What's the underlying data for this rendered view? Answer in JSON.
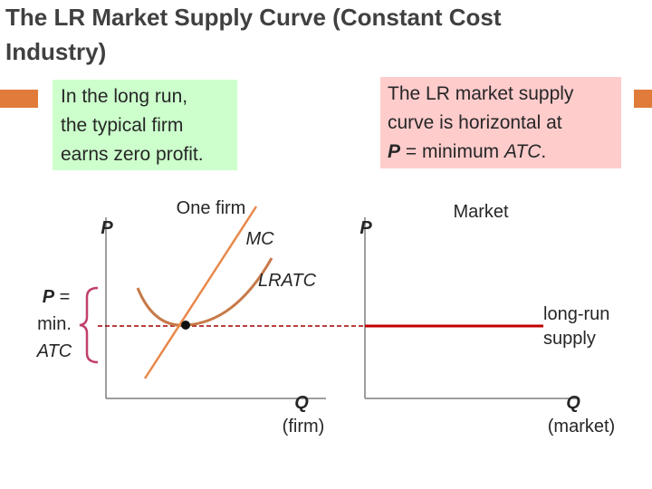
{
  "title": {
    "line1": "The LR Market Supply Curve (Constant Cost",
    "line2": "Industry)"
  },
  "left_note": {
    "line1": "In the long run,",
    "line2": "the typical firm",
    "line3": "earns zero profit."
  },
  "right_note": {
    "line1": "The LR market supply",
    "line2": "curve is horizontal at",
    "line3_p": "P",
    "line3_mid": " = minimum ",
    "line3_atc": "ATC",
    "line3_end": "."
  },
  "bracket_label": {
    "line1_p": "P",
    "line1_eq": " =",
    "line2": "min.",
    "line3": "ATC"
  },
  "firm_graph": {
    "y_axis": "P",
    "title": "One firm",
    "mc": "MC",
    "lratc": "LRATC",
    "x_axis": "Q",
    "x_axis_sub": "(firm)"
  },
  "market_graph": {
    "y_axis": "P",
    "title": "Market",
    "supply_line1": "long-run",
    "supply_line2": "supply",
    "x_axis": "Q",
    "x_axis_sub": "(market)"
  }
}
